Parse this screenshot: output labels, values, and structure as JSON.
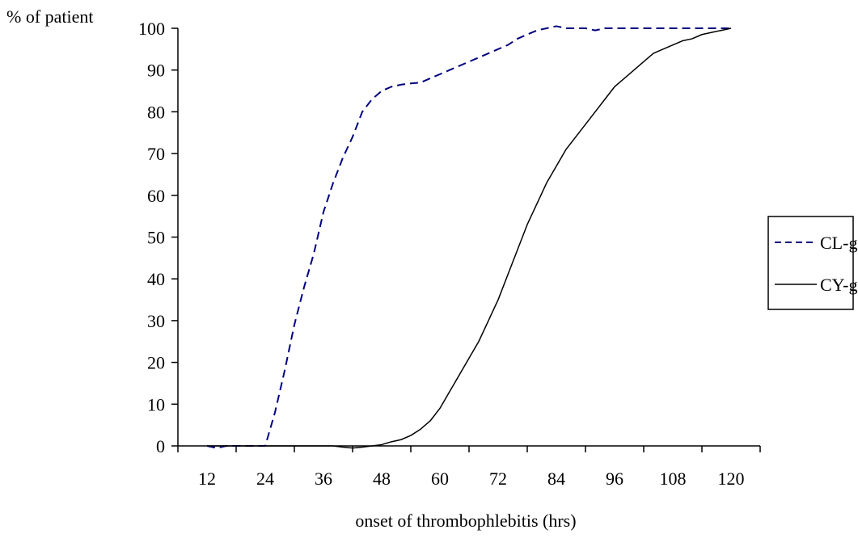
{
  "chart_data": {
    "type": "line",
    "title": "",
    "ylabel": "% of patient",
    "xlabel": "onset of thrombophlebitis (hrs)",
    "x_tick_labels": [
      "12",
      "24",
      "36",
      "48",
      "60",
      "72",
      "84",
      "96",
      "108",
      "120"
    ],
    "y_tick_labels": [
      "0",
      "10",
      "20",
      "30",
      "40",
      "50",
      "60",
      "70",
      "80",
      "90",
      "100"
    ],
    "ylim": [
      0,
      100
    ],
    "legend_position": "right",
    "grid": false,
    "series": [
      {
        "name": "CL-gr",
        "style": "dashed",
        "color": "#000080",
        "points": [
          [
            12,
            0
          ],
          [
            14,
            -0.5
          ],
          [
            16,
            0
          ],
          [
            18,
            0
          ],
          [
            20,
            0
          ],
          [
            22,
            0
          ],
          [
            24,
            0
          ],
          [
            26,
            8
          ],
          [
            28,
            18
          ],
          [
            30,
            29
          ],
          [
            32,
            38
          ],
          [
            34,
            46
          ],
          [
            36,
            56
          ],
          [
            38,
            63
          ],
          [
            40,
            69
          ],
          [
            42,
            74
          ],
          [
            44,
            80
          ],
          [
            46,
            83
          ],
          [
            48,
            85
          ],
          [
            50,
            86
          ],
          [
            52,
            86.5
          ],
          [
            54,
            86.8
          ],
          [
            56,
            87
          ],
          [
            58,
            88
          ],
          [
            60,
            89
          ],
          [
            62,
            90
          ],
          [
            64,
            91
          ],
          [
            66,
            92
          ],
          [
            68,
            93
          ],
          [
            70,
            94
          ],
          [
            72,
            95
          ],
          [
            74,
            96
          ],
          [
            76,
            97.5
          ],
          [
            78,
            98.5
          ],
          [
            80,
            99.5
          ],
          [
            82,
            100
          ],
          [
            84,
            100.5
          ],
          [
            86,
            100
          ],
          [
            88,
            100
          ],
          [
            90,
            100
          ],
          [
            92,
            99.5
          ],
          [
            94,
            100
          ],
          [
            96,
            100
          ],
          [
            98,
            100
          ],
          [
            100,
            100
          ],
          [
            102,
            100
          ],
          [
            104,
            100
          ],
          [
            106,
            100
          ],
          [
            108,
            100
          ],
          [
            110,
            100
          ],
          [
            112,
            100
          ],
          [
            114,
            100
          ],
          [
            116,
            100
          ],
          [
            118,
            100
          ],
          [
            120,
            100
          ]
        ]
      },
      {
        "name": "CY-gr",
        "style": "solid",
        "color": "#000000",
        "points": [
          [
            12,
            0
          ],
          [
            24,
            0
          ],
          [
            36,
            0
          ],
          [
            38,
            0
          ],
          [
            40,
            -0.3
          ],
          [
            42,
            -0.5
          ],
          [
            44,
            -0.3
          ],
          [
            46,
            0
          ],
          [
            48,
            0.3
          ],
          [
            50,
            1
          ],
          [
            52,
            1.5
          ],
          [
            54,
            2.5
          ],
          [
            56,
            4
          ],
          [
            58,
            6
          ],
          [
            60,
            9
          ],
          [
            62,
            13
          ],
          [
            64,
            17
          ],
          [
            66,
            21
          ],
          [
            68,
            25
          ],
          [
            70,
            30
          ],
          [
            72,
            35
          ],
          [
            74,
            41
          ],
          [
            76,
            47
          ],
          [
            78,
            53
          ],
          [
            80,
            58
          ],
          [
            82,
            63
          ],
          [
            84,
            67
          ],
          [
            86,
            71
          ],
          [
            88,
            74
          ],
          [
            90,
            77
          ],
          [
            92,
            80
          ],
          [
            94,
            83
          ],
          [
            96,
            86
          ],
          [
            98,
            88
          ],
          [
            100,
            90
          ],
          [
            102,
            92
          ],
          [
            104,
            94
          ],
          [
            106,
            95
          ],
          [
            108,
            96
          ],
          [
            110,
            97
          ],
          [
            112,
            97.5
          ],
          [
            114,
            98.5
          ],
          [
            116,
            99
          ],
          [
            118,
            99.5
          ],
          [
            120,
            100
          ]
        ]
      }
    ]
  }
}
